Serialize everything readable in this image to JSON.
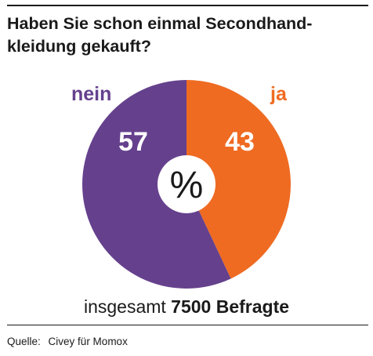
{
  "title": "Haben Sie schon einmal Secondhand-kleidung gekauft?",
  "title_lines": [
    "Haben Sie schon einmal Secondhand-",
    "kleidung gekauft?"
  ],
  "center_label": "%",
  "total": {
    "prefix": "insgesamt",
    "value": "7500 Befragte"
  },
  "source": {
    "label": "Quelle:",
    "text": "Civey für Momox"
  },
  "colors": {
    "ja": "#ef6b22",
    "nein": "#65418d",
    "text": "#1a1a1a",
    "center": "#ffffff"
  },
  "chart_data": {
    "type": "pie",
    "title": "Haben Sie schon einmal Secondhand-kleidung gekauft?",
    "unit": "%",
    "categories": [
      "ja",
      "nein"
    ],
    "values": [
      43,
      57
    ],
    "legend_placement": "labels outside slices (ja top-right, nein top-left)",
    "donut_center_label": "%"
  }
}
